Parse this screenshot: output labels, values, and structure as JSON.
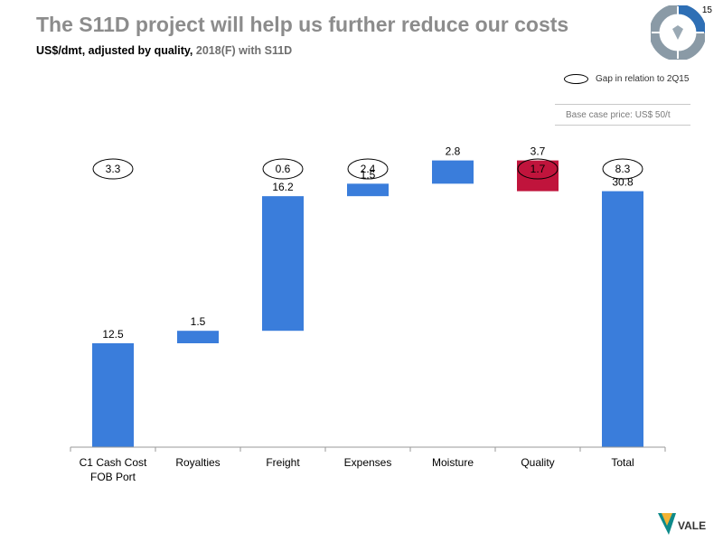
{
  "slide": {
    "title": "The S11D project will help us further reduce our costs",
    "subtitle_dark": "US$/dmt, adjusted by quality,",
    "subtitle_gray": "2018(F) with S11D",
    "page_number": "15",
    "legend_text": "Gap in relation to 2Q15",
    "base_price_note": "Base case price: US$ 50/t",
    "brand": "VALE",
    "colors": {
      "accent": "#3a7ddb",
      "negative": "#c0143c",
      "title_gray": "#8c8c8c",
      "logo_gray": "#8a9aa6",
      "logo_blue": "#2e6fb5"
    }
  },
  "chart_data": {
    "type": "bar",
    "variant": "waterfall",
    "categories": [
      "C1 Cash Cost FOB Port",
      "Royalties",
      "Freight",
      "Expenses",
      "Moisture",
      "Quality",
      "Total"
    ],
    "values": [
      12.5,
      1.5,
      16.2,
      1.5,
      2.8,
      -3.7,
      30.8
    ],
    "value_labels": [
      "12.5",
      "1.5",
      "16.2",
      "1.5",
      "2.8",
      "3.7",
      "30.8"
    ],
    "kinds": [
      "total",
      "increase",
      "increase",
      "increase",
      "increase",
      "decrease",
      "total"
    ],
    "gaps": [
      "3.3",
      "",
      "0.6",
      "2.4",
      "",
      "1.7",
      "8.3"
    ],
    "ylim": [
      0,
      37.5
    ],
    "grid": false,
    "legend": "top-right"
  }
}
